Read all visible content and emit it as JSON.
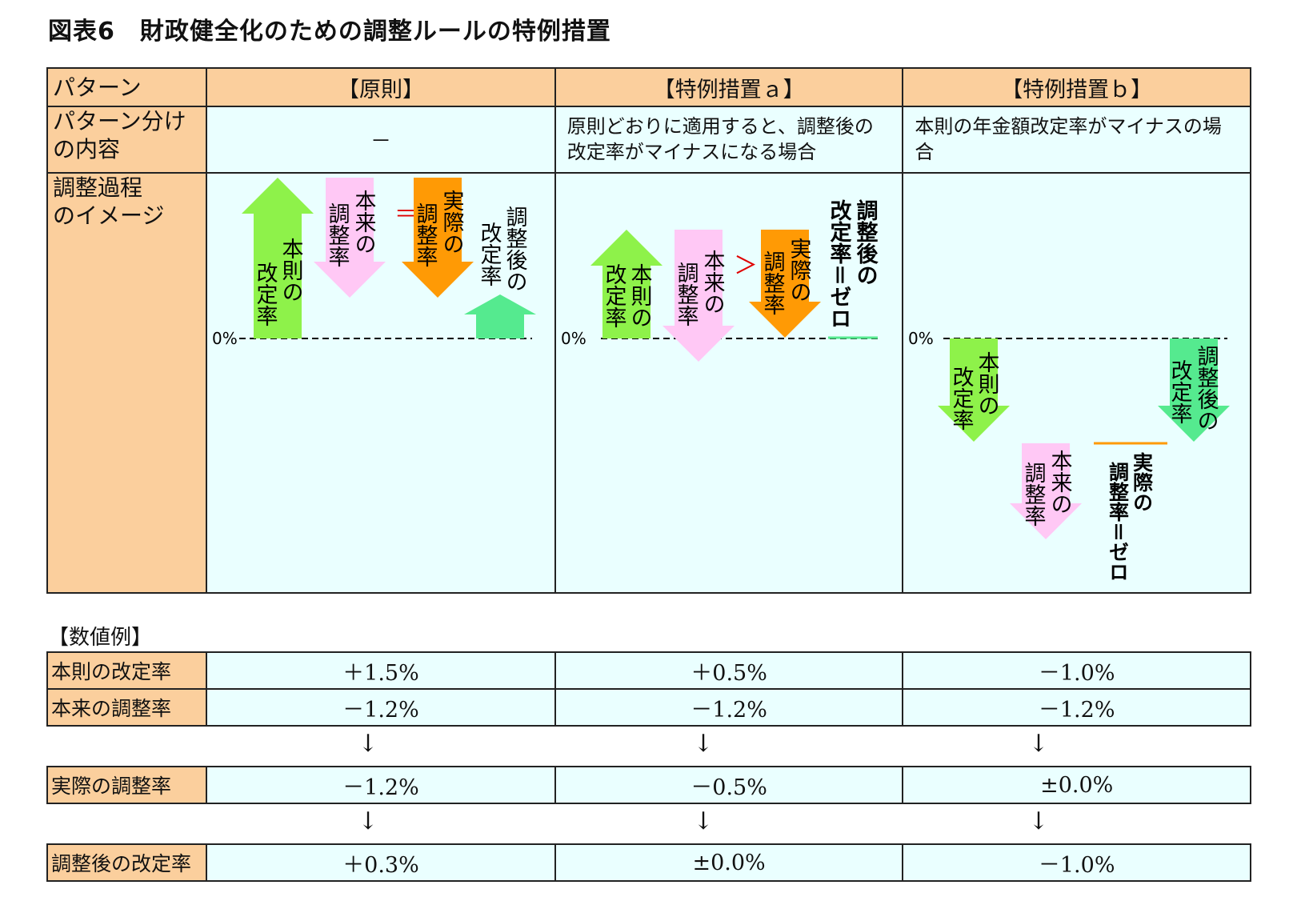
{
  "title": "図表6　財政健全化のための調整ルールの特例措置",
  "table": {
    "col_header_label": "パターン",
    "columns": [
      "【原則】",
      "【特例措置ａ】",
      "【特例措置ｂ】"
    ],
    "row_pattern_label_1": "パターン分け",
    "row_pattern_label_2": "の内容",
    "pattern_contents": [
      "－",
      "原則どおりに適用すると、調整後の改定率がマイナスになる場合",
      "本則の年金額改定率がマイナスの場合"
    ],
    "row_process_label_1": "調整過程",
    "row_process_label_2": "のイメージ"
  },
  "diagram": {
    "zero_label": "0%",
    "honsoku": "本則の改定率",
    "honrai": "本来の調整率",
    "jissai": "実際の調整率",
    "chouseigo": "調整後の改定率",
    "chouseigo_zero": "調整後の改定率＝ゼロ",
    "jissai_zero": "実際の調整率＝ゼロ",
    "equal_sign": "＝",
    "greater_sign": "＞",
    "colors": {
      "green": "#8ef24a",
      "pink": "#ffc8f5",
      "orange": "#ff9a05",
      "mint": "#55ea8f",
      "red": "#e00000"
    }
  },
  "numeric": {
    "section_label": "【数値例】",
    "rows": [
      {
        "label": "本則の改定率",
        "values": [
          "＋1.5%",
          "＋0.5%",
          "－1.0%"
        ]
      },
      {
        "label": "本来の調整率",
        "values": [
          "－1.2%",
          "－1.2%",
          "－1.2%"
        ]
      },
      {
        "label": "実際の調整率",
        "values": [
          "－1.2%",
          "－0.5%",
          "±0.0%"
        ]
      },
      {
        "label": "調整後の改定率",
        "values": [
          "＋0.3%",
          "±0.0%",
          "－1.0%"
        ]
      }
    ],
    "arrow_glyph": "↓"
  }
}
